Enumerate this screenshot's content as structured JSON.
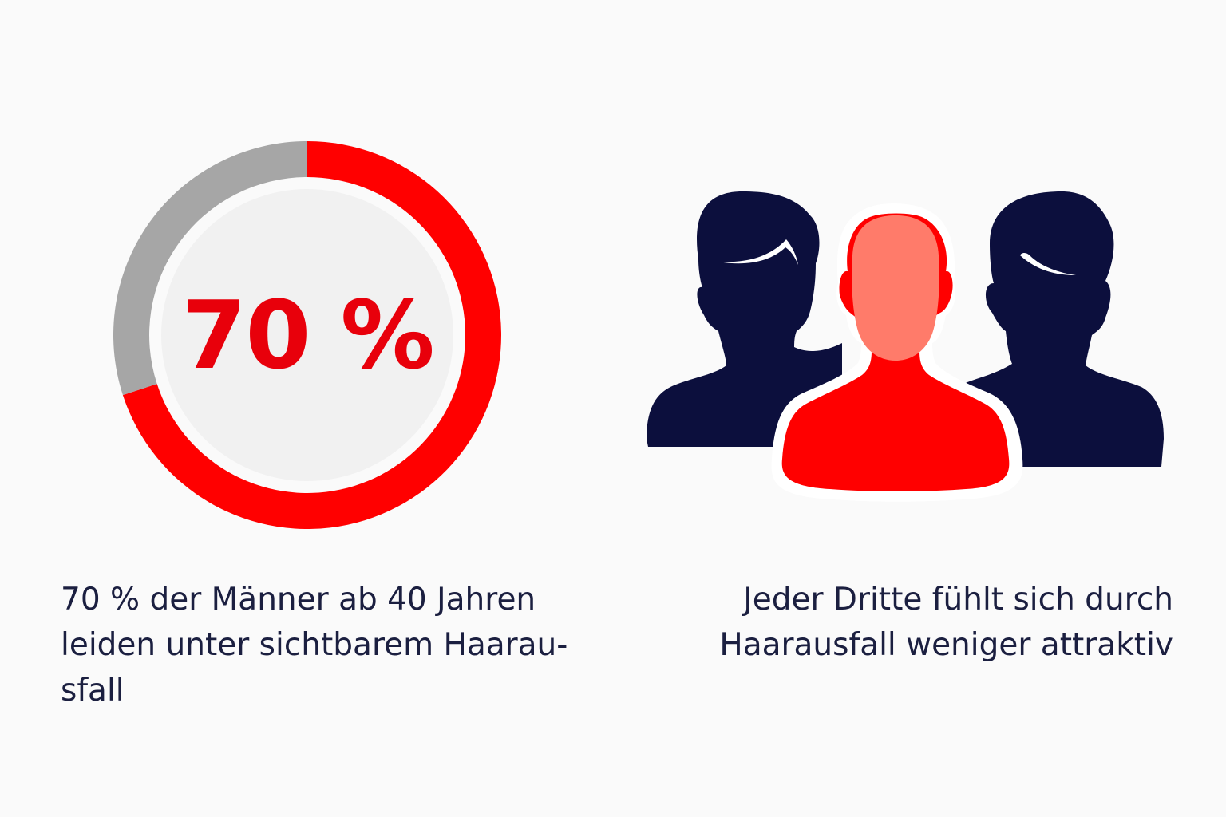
{
  "chart_data": {
    "type": "pie",
    "center_label": "70 %",
    "slices": [
      {
        "value": 70,
        "color": "#ff0000"
      },
      {
        "value": 30,
        "color": "#a6a6a6"
      }
    ]
  },
  "left_caption": {
    "line1": "70 % der Männer ab 40 Jahren",
    "line2": "leiden unter sichtbarem Haarau-",
    "line3": "sfall"
  },
  "right_caption": {
    "line1": "Jeder Dritte fühlt sich durch",
    "line2": "Haarausfall weniger attraktiv"
  },
  "icons": {
    "people_group": "people-group-icon"
  },
  "colors": {
    "accent_red": "#ff0000",
    "gray": "#a6a6a6",
    "navy": "#0c0f3d",
    "face_pink": "#ff7b6a",
    "text": "#1b1f40"
  }
}
